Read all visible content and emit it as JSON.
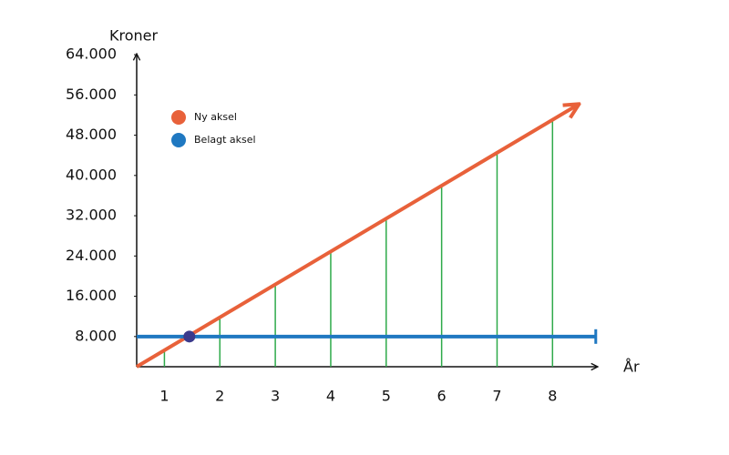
{
  "chart_data": {
    "type": "line",
    "y_label": "Kroner",
    "x_label": "År",
    "xlim": [
      0.5,
      8.8
    ],
    "ylim": [
      2000,
      66000
    ],
    "xticks": [
      1,
      2,
      3,
      4,
      5,
      6,
      7,
      8
    ],
    "yticks": [
      {
        "value": 8000,
        "label": "8.000"
      },
      {
        "value": 16000,
        "label": "16.000"
      },
      {
        "value": 24000,
        "label": "24.000"
      },
      {
        "value": 32000,
        "label": "32.000"
      },
      {
        "value": 40000,
        "label": "40.000"
      },
      {
        "value": 48000,
        "label": "48.000"
      },
      {
        "value": 56000,
        "label": "56.000"
      },
      {
        "value": 64000,
        "label": "64.000"
      }
    ],
    "drop_line_color": "#2eaa4a",
    "series": [
      {
        "name": "Ny aksel",
        "color": "#e8613a",
        "x": [
          0.5,
          8.45
        ],
        "values": [
          2000,
          54000
        ]
      },
      {
        "name": "Belagt aksel",
        "color": "#1f78c1",
        "x": [
          0.5,
          8.78
        ],
        "values": [
          8000,
          8000
        ]
      }
    ],
    "intersection": {
      "x": 1.45,
      "y": 8000,
      "color": "#3b3a8c"
    }
  }
}
